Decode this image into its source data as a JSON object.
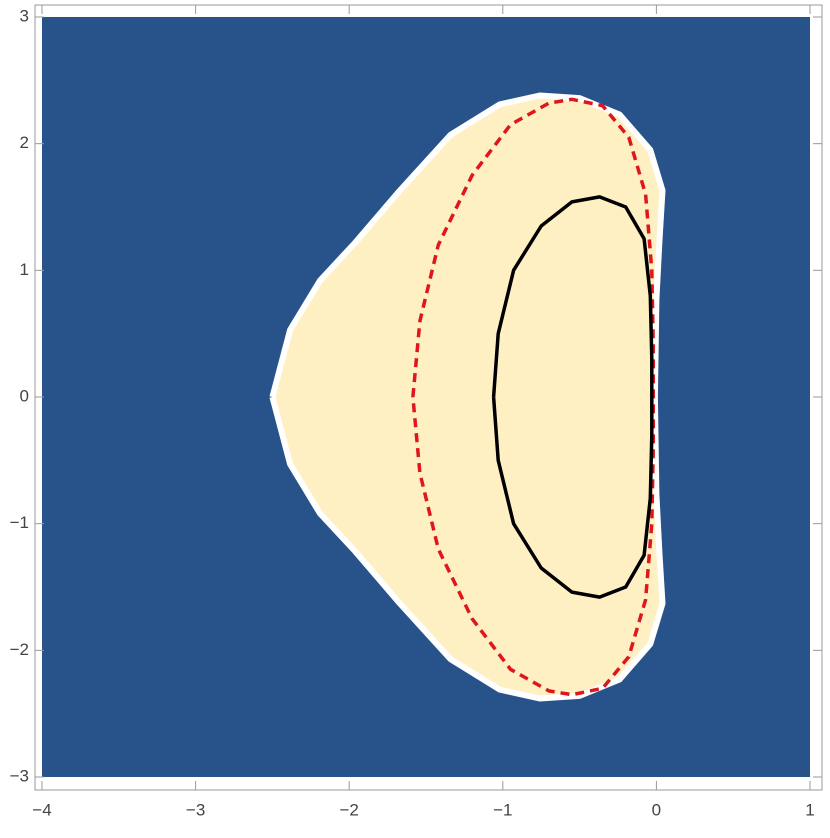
{
  "chart_data": {
    "type": "region",
    "xlim": [
      -4,
      1
    ],
    "ylim": [
      -3,
      3
    ],
    "xticks": [
      {
        "value": -4,
        "label": "−4"
      },
      {
        "value": -3,
        "label": "−3"
      },
      {
        "value": -2,
        "label": "−2"
      },
      {
        "value": -1,
        "label": "−1"
      },
      0,
      1
    ],
    "yticks": [
      {
        "value": -3,
        "label": "−3"
      },
      {
        "value": -2,
        "label": "−2"
      },
      {
        "value": -1,
        "label": "−1"
      },
      0,
      1,
      2,
      3
    ],
    "background": "#28538a",
    "series": [
      {
        "color": "#ffffff",
        "fill": "#fff0c4",
        "dashed": false,
        "x": [
          -2.5,
          -2.385,
          -2.19,
          -1.96,
          -1.67,
          -1.34,
          -1.02,
          -0.76,
          -0.5,
          -0.24,
          -0.04,
          0.04,
          0.02,
          0.0,
          -0.01,
          0.0,
          0.02,
          0.04,
          -0.04,
          -0.24,
          -0.5,
          -0.76,
          -1.02,
          -1.34,
          -1.67,
          -1.96,
          -2.19,
          -2.385,
          -2.5
        ],
        "y": [
          0,
          0.53,
          0.92,
          1.22,
          1.63,
          2.07,
          2.31,
          2.38,
          2.36,
          2.23,
          1.95,
          1.63,
          1.24,
          0.77,
          0,
          -0.77,
          -1.24,
          -1.63,
          -1.95,
          -2.23,
          -2.36,
          -2.38,
          -2.31,
          -2.07,
          -1.63,
          -1.22,
          -0.92,
          -0.53,
          0
        ]
      },
      {
        "color": "#e0161d",
        "dashed": true,
        "x": [
          -1.585,
          -1.54,
          -1.42,
          -1.2,
          -0.95,
          -0.7,
          -0.55,
          -0.35,
          -0.18,
          -0.07,
          -0.03,
          -0.02,
          -0.02,
          -0.02,
          -0.03,
          -0.07,
          -0.18,
          -0.35,
          -0.55,
          -0.7,
          -0.95,
          -1.2,
          -1.42,
          -1.54,
          -1.585
        ],
        "y": [
          0,
          0.6,
          1.2,
          1.75,
          2.15,
          2.32,
          2.35,
          2.3,
          2.05,
          1.6,
          1.0,
          0.4,
          0,
          -0.4,
          -1.0,
          -1.6,
          -2.05,
          -2.3,
          -2.35,
          -2.32,
          -2.15,
          -1.75,
          -1.2,
          -0.6,
          0
        ]
      },
      {
        "color": "#000000",
        "dashed": false,
        "x": [
          -1.06,
          -1.03,
          -0.93,
          -0.75,
          -0.55,
          -0.37,
          -0.2,
          -0.08,
          -0.04,
          -0.03,
          -0.03,
          -0.03,
          -0.04,
          -0.08,
          -0.2,
          -0.37,
          -0.55,
          -0.75,
          -0.93,
          -1.03,
          -1.06
        ],
        "y": [
          0,
          0.5,
          1.0,
          1.35,
          1.54,
          1.58,
          1.5,
          1.25,
          0.8,
          0.3,
          0,
          -0.3,
          -0.8,
          -1.25,
          -1.5,
          -1.58,
          -1.54,
          -1.35,
          -1.0,
          -0.5,
          0
        ]
      }
    ]
  }
}
